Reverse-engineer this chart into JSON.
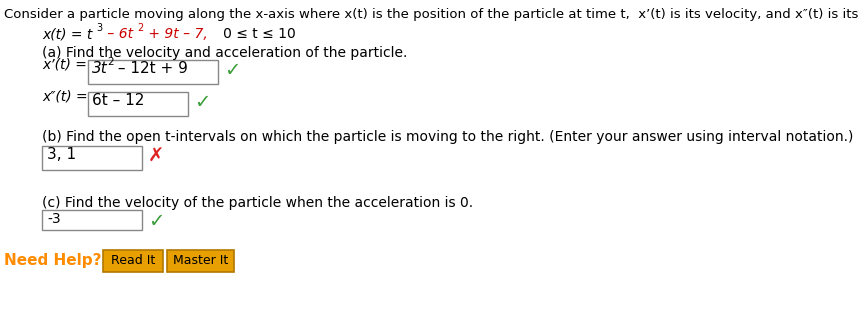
{
  "bg_color": "#ffffff",
  "text_color": "#000000",
  "orange_color": "#FF8C00",
  "red_color": "#CC0000",
  "green_color": "#3A9E3A",
  "red_x_color": "#DD2222",
  "button_bg": "#E8A000",
  "button_border": "#B07800",
  "button_text_color": "#000000",
  "box_border": "#888888",
  "intro_text": "Consider a particle moving along the x-axis where x(t) is the position of the particle at time t,  x’(t) is its velocity, and x″(t) is its acceleration.",
  "part_a_text": "(a) Find the velocity and acceleration of the particle.",
  "part_b_text": "(b) Find the open t-intervals on which the particle is moving to the right. (Enter your answer using interval notation.)",
  "part_b_answer": "3, 1",
  "part_c_text": "(c) Find the velocity of the particle when the acceleration is 0.",
  "part_c_answer": "-3",
  "need_help_text": "Need Help?",
  "btn1_text": "Read It",
  "btn2_text": "Master It"
}
